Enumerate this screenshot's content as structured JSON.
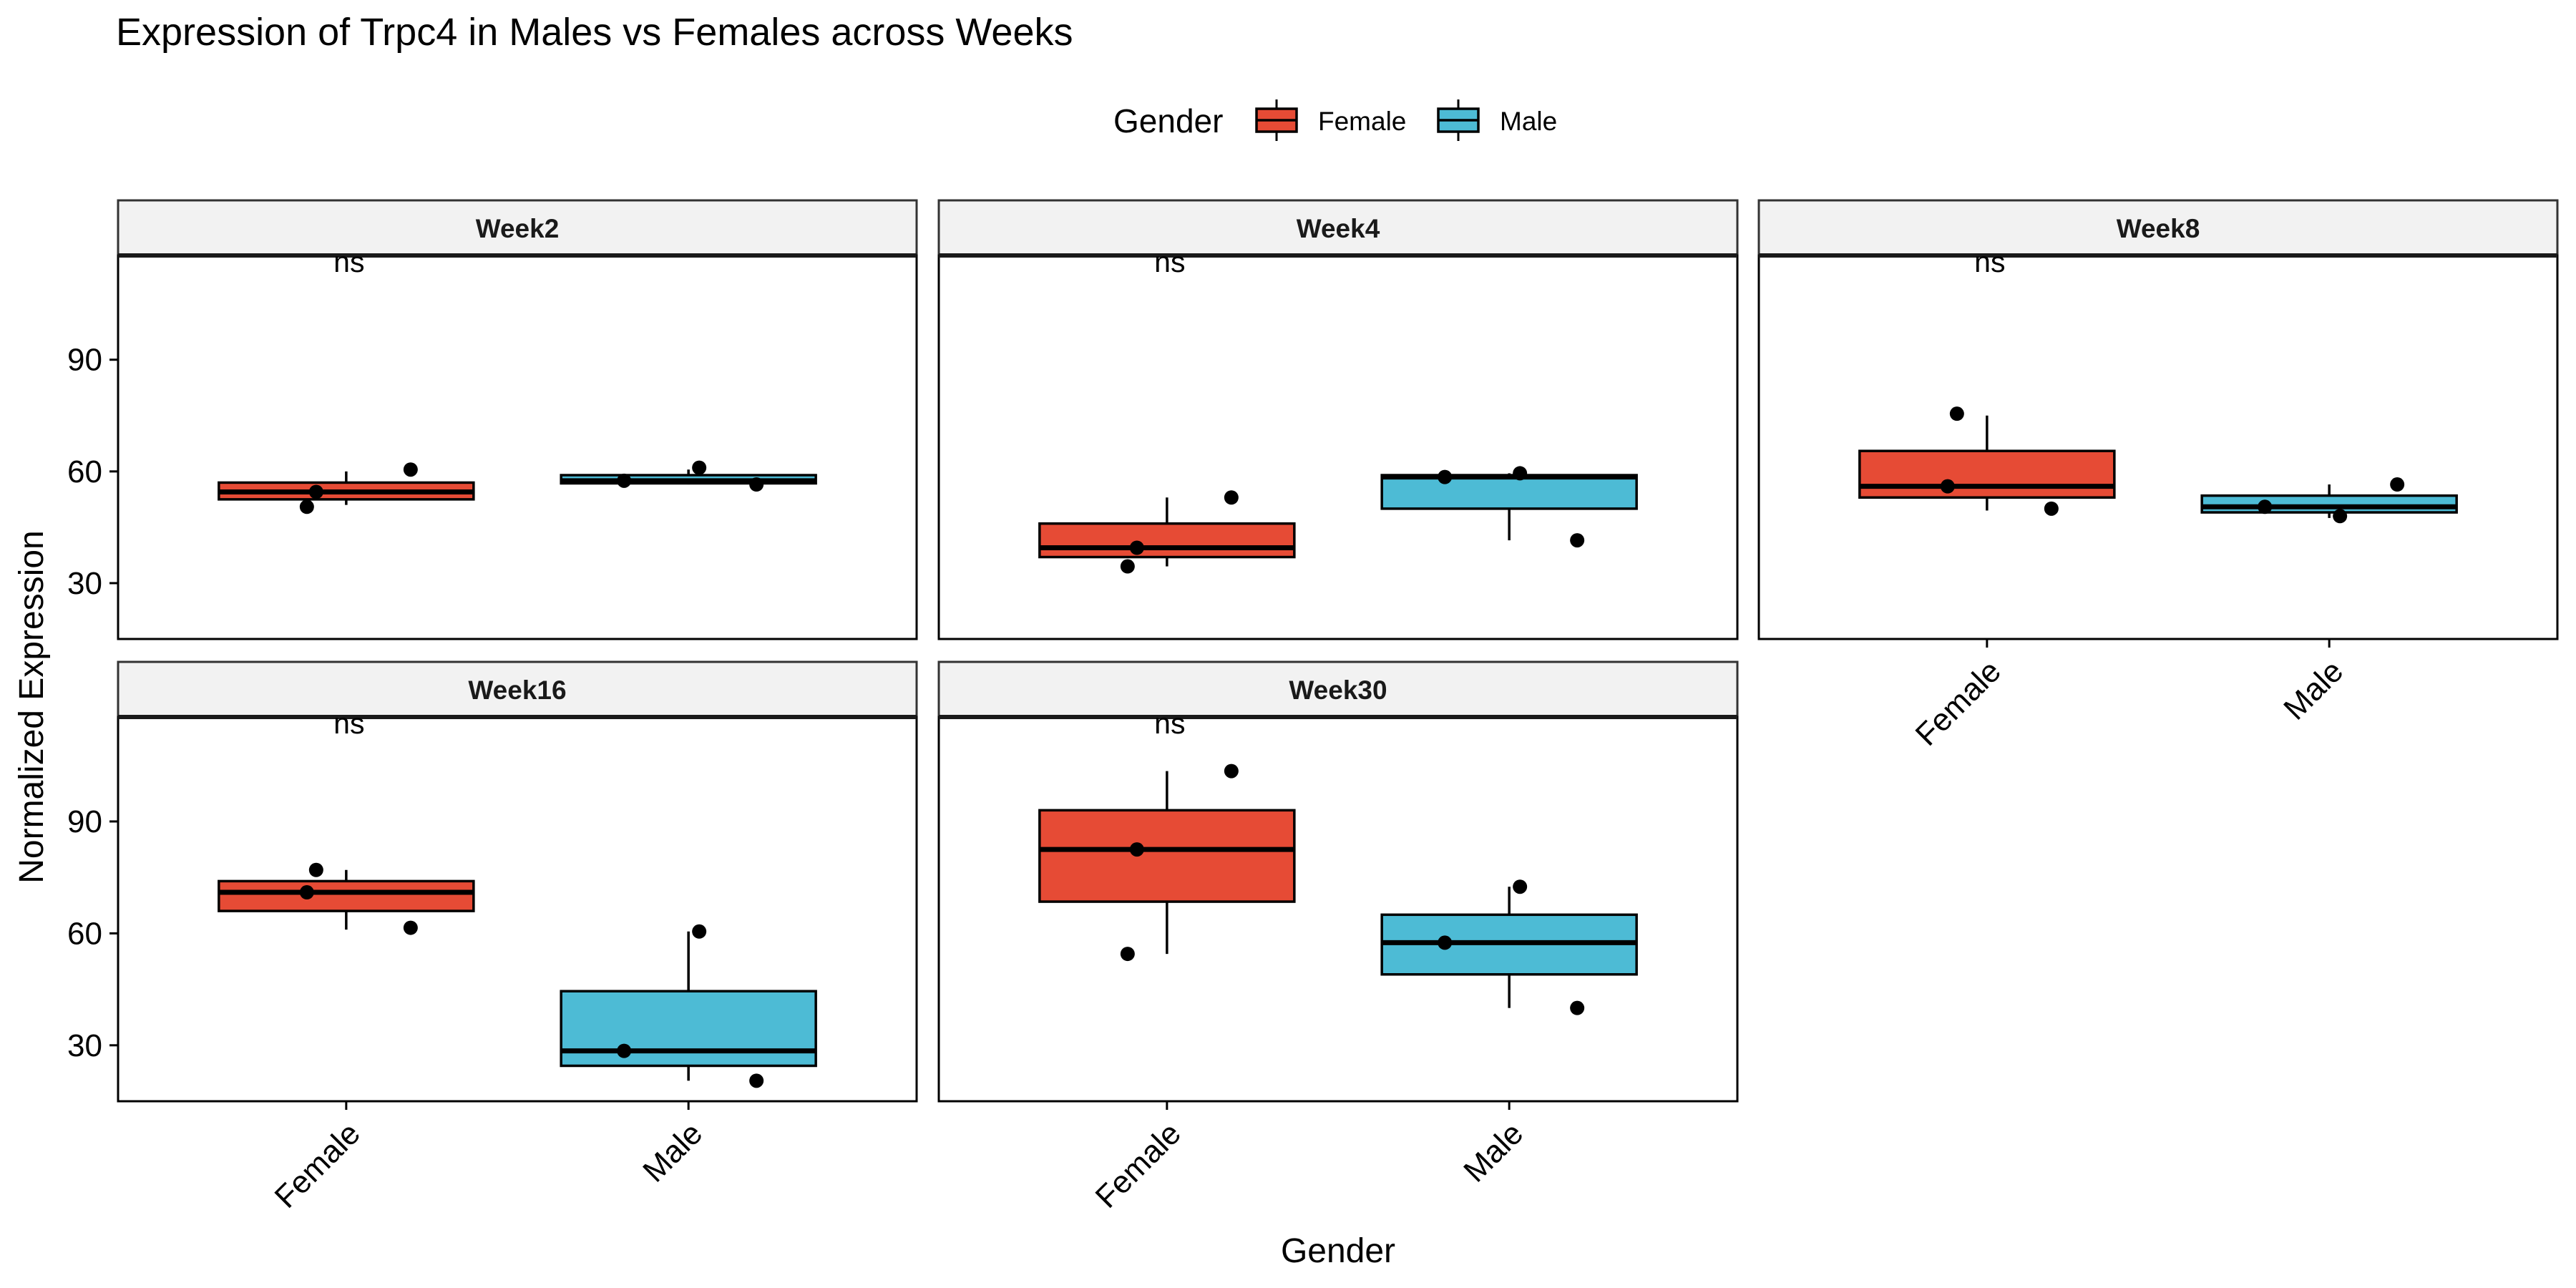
{
  "chart_data": {
    "type": "boxplot",
    "title": "Expression of Trpc4 in Males vs Females across Weeks",
    "xlabel": "Gender",
    "ylabel": "Normalized Expression",
    "ylim": [
      15,
      118
    ],
    "y_ticks": [
      30,
      60,
      90
    ],
    "categories": [
      "Female",
      "Male"
    ],
    "legend": {
      "title": "Gender",
      "position": "top",
      "entries": [
        {
          "name": "Female",
          "color": "#E64B35"
        },
        {
          "name": "Male",
          "color": "#4DBBD5"
        }
      ]
    },
    "panels": [
      {
        "name": "Week2",
        "annotation": "ns",
        "groups": [
          {
            "category": "Female",
            "whisker_low": 51,
            "q1": 52.5,
            "median": 54.5,
            "q3": 57,
            "whisker_high": 60,
            "points": [
              54.5,
              50.5,
              60.5
            ]
          },
          {
            "category": "Male",
            "whisker_low": 56.5,
            "q1": 56.8,
            "median": 57.5,
            "q3": 59,
            "whisker_high": 60.5,
            "points": [
              57.5,
              56.5,
              61
            ]
          }
        ]
      },
      {
        "name": "Week4",
        "annotation": "ns",
        "groups": [
          {
            "category": "Female",
            "whisker_low": 34.5,
            "q1": 37,
            "median": 39.5,
            "q3": 46,
            "whisker_high": 53,
            "points": [
              39.5,
              34.5,
              53
            ]
          },
          {
            "category": "Male",
            "whisker_low": 41.5,
            "q1": 50,
            "median": 58.5,
            "q3": 59,
            "whisker_high": 59.5,
            "points": [
              58.5,
              41.5,
              59.5
            ]
          }
        ]
      },
      {
        "name": "Week8",
        "annotation": "ns",
        "groups": [
          {
            "category": "Female",
            "whisker_low": 49.5,
            "q1": 53,
            "median": 56,
            "q3": 65.5,
            "whisker_high": 75,
            "points": [
              75.5,
              56,
              50
            ]
          },
          {
            "category": "Male",
            "whisker_low": 47.5,
            "q1": 49,
            "median": 50.5,
            "q3": 53.5,
            "whisker_high": 56.5,
            "points": [
              50.5,
              56.5,
              48
            ]
          }
        ]
      },
      {
        "name": "Week16",
        "annotation": "ns",
        "groups": [
          {
            "category": "Female",
            "whisker_low": 61,
            "q1": 66,
            "median": 71,
            "q3": 74,
            "whisker_high": 77,
            "points": [
              77,
              71,
              61.5
            ]
          },
          {
            "category": "Male",
            "whisker_low": 20.5,
            "q1": 24.5,
            "median": 28.5,
            "q3": 44.5,
            "whisker_high": 60.5,
            "points": [
              28.5,
              20.5,
              60.5
            ]
          }
        ]
      },
      {
        "name": "Week30",
        "annotation": "ns",
        "groups": [
          {
            "category": "Female",
            "whisker_low": 54.5,
            "q1": 68.5,
            "median": 82.5,
            "q3": 93,
            "whisker_high": 103.5,
            "points": [
              82.5,
              54.5,
              103.5
            ]
          },
          {
            "category": "Male",
            "whisker_low": 40,
            "q1": 49,
            "median": 57.5,
            "q3": 65,
            "whisker_high": 72.5,
            "points": [
              57.5,
              40,
              72.5
            ]
          }
        ]
      }
    ]
  }
}
